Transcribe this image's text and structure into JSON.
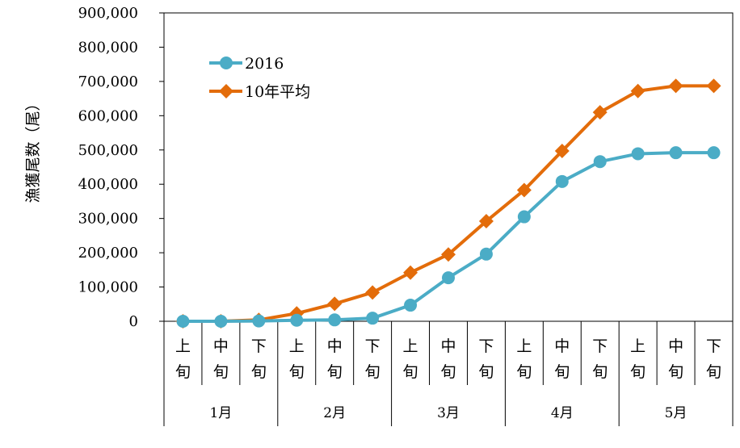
{
  "chart_data": {
    "type": "line",
    "ylabel": "漁獲尾数（尾）",
    "ylim": [
      0,
      900000
    ],
    "yticks": [
      "0",
      "100,000",
      "200,000",
      "300,000",
      "400,000",
      "500,000",
      "600,000",
      "700,000",
      "800,000",
      "900,000"
    ],
    "periods": [
      {
        "top": "上",
        "bottom": "旬"
      },
      {
        "top": "中",
        "bottom": "旬"
      },
      {
        "top": "下",
        "bottom": "旬"
      },
      {
        "top": "上",
        "bottom": "旬"
      },
      {
        "top": "中",
        "bottom": "旬"
      },
      {
        "top": "下",
        "bottom": "旬"
      },
      {
        "top": "上",
        "bottom": "旬"
      },
      {
        "top": "中",
        "bottom": "旬"
      },
      {
        "top": "下",
        "bottom": "旬"
      },
      {
        "top": "上",
        "bottom": "旬"
      },
      {
        "top": "中",
        "bottom": "旬"
      },
      {
        "top": "下",
        "bottom": "旬"
      },
      {
        "top": "上",
        "bottom": "旬"
      },
      {
        "top": "中",
        "bottom": "旬"
      },
      {
        "top": "下",
        "bottom": "旬"
      }
    ],
    "months": [
      "1月",
      "2月",
      "3月",
      "4月",
      "5月"
    ],
    "series": [
      {
        "name": "2016",
        "color": "#4BACC6",
        "marker": "circle",
        "values": [
          0,
          0,
          1000,
          3000,
          4000,
          9000,
          47000,
          127000,
          196000,
          305000,
          408000,
          466000,
          489000,
          492000,
          492000
        ]
      },
      {
        "name": "10年平均",
        "color": "#E36C0A",
        "marker": "diamond",
        "values": [
          0,
          0,
          4000,
          23000,
          51000,
          84000,
          142000,
          195000,
          292000,
          383000,
          497000,
          610000,
          672000,
          687000,
          687000
        ]
      }
    ],
    "legend_position": "top-left",
    "grid": false
  }
}
